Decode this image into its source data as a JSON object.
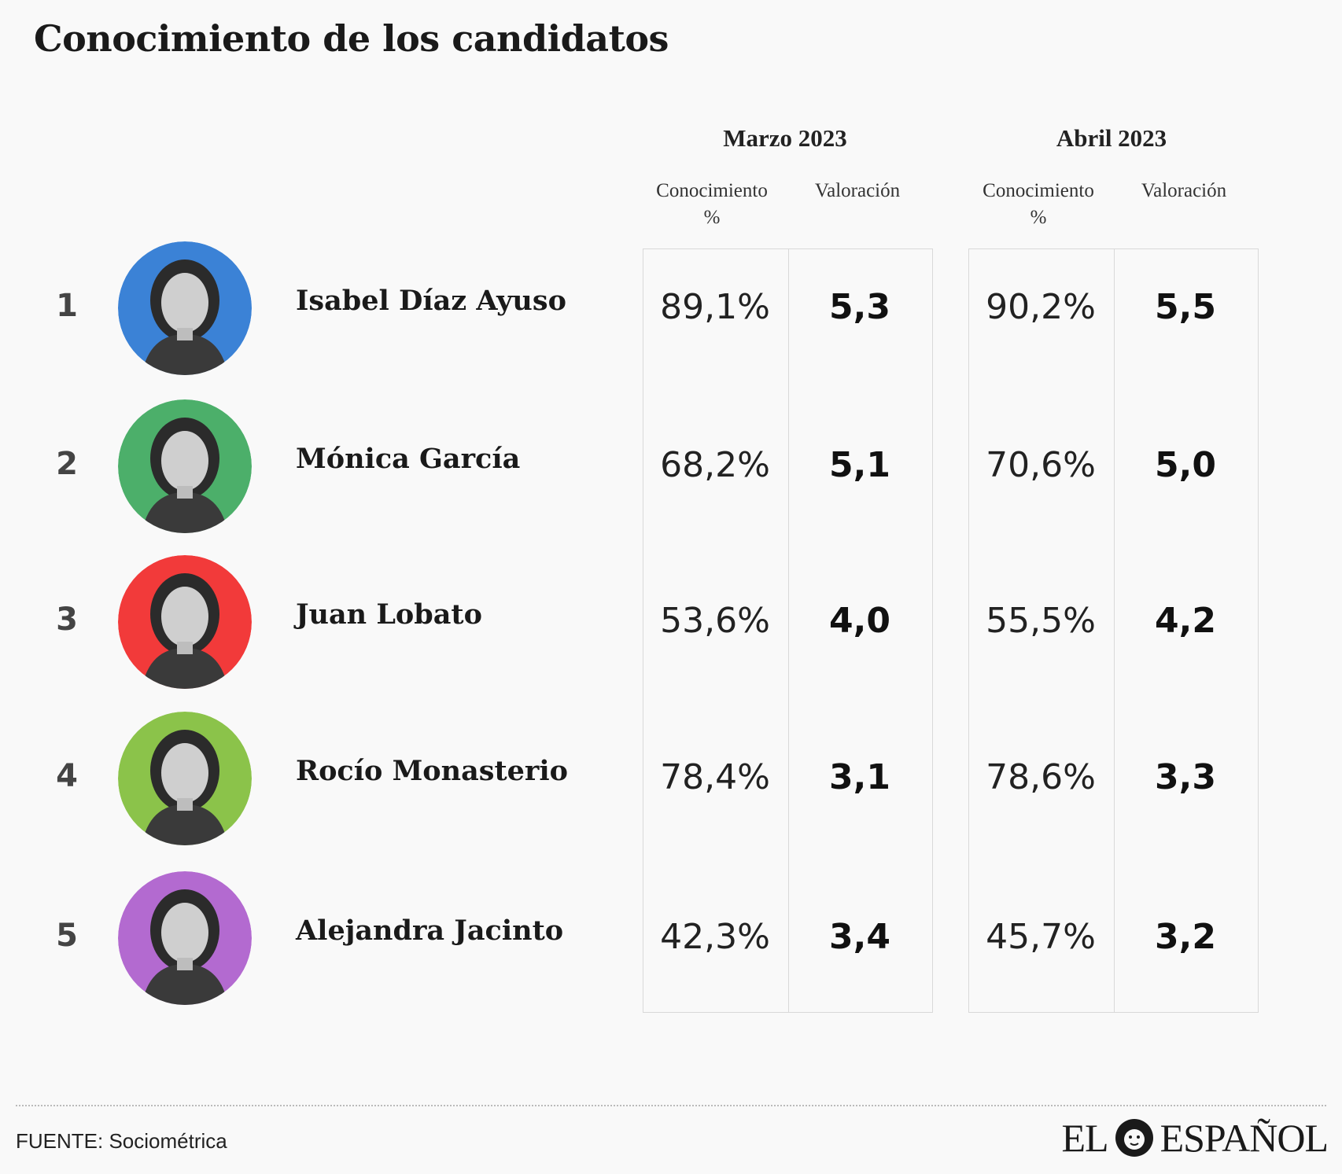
{
  "title": "Conocimiento de los candidatos",
  "periods": [
    {
      "label": "Marzo 2023",
      "col1": "Conocimiento",
      "col1_unit": "%",
      "col2": "Valoración"
    },
    {
      "label": "Abril 2023",
      "col1": "Conocimiento",
      "col1_unit": "%",
      "col2": "Valoración"
    }
  ],
  "chart_data": {
    "type": "table",
    "title": "Conocimiento de los candidatos",
    "columns": [
      "Marzo 2023 Conocimiento %",
      "Marzo 2023 Valoración",
      "Abril 2023 Conocimiento %",
      "Abril 2023 Valoración"
    ],
    "rows": [
      {
        "rank": "1",
        "name": "Isabel Díaz Ayuso",
        "color": "#3b82d6",
        "mar_con": "89,1%",
        "mar_val": "5,3",
        "abr_con": "90,2%",
        "abr_val": "5,5"
      },
      {
        "rank": "2",
        "name": "Mónica García",
        "color": "#4caf6a",
        "mar_con": "68,2%",
        "mar_val": "5,1",
        "abr_con": "70,6%",
        "abr_val": "5,0"
      },
      {
        "rank": "3",
        "name": "Juan Lobato",
        "color": "#f23a3a",
        "mar_con": "53,6%",
        "mar_val": "4,0",
        "abr_con": "55,5%",
        "abr_val": "4,2"
      },
      {
        "rank": "4",
        "name": "Rocío Monasterio",
        "color": "#8bc34a",
        "mar_con": "78,4%",
        "mar_val": "3,1",
        "abr_con": "78,6%",
        "abr_val": "3,3"
      },
      {
        "rank": "5",
        "name": "Alejandra Jacinto",
        "color": "#b36ad0",
        "mar_con": "42,3%",
        "mar_val": "3,4",
        "abr_con": "45,7%",
        "abr_val": "3,2"
      }
    ]
  },
  "footer": {
    "source": "FUENTE: Sociométrica",
    "logo_left": "EL",
    "logo_right": "ESPAÑOL",
    "logo_icon": "lion-icon"
  }
}
